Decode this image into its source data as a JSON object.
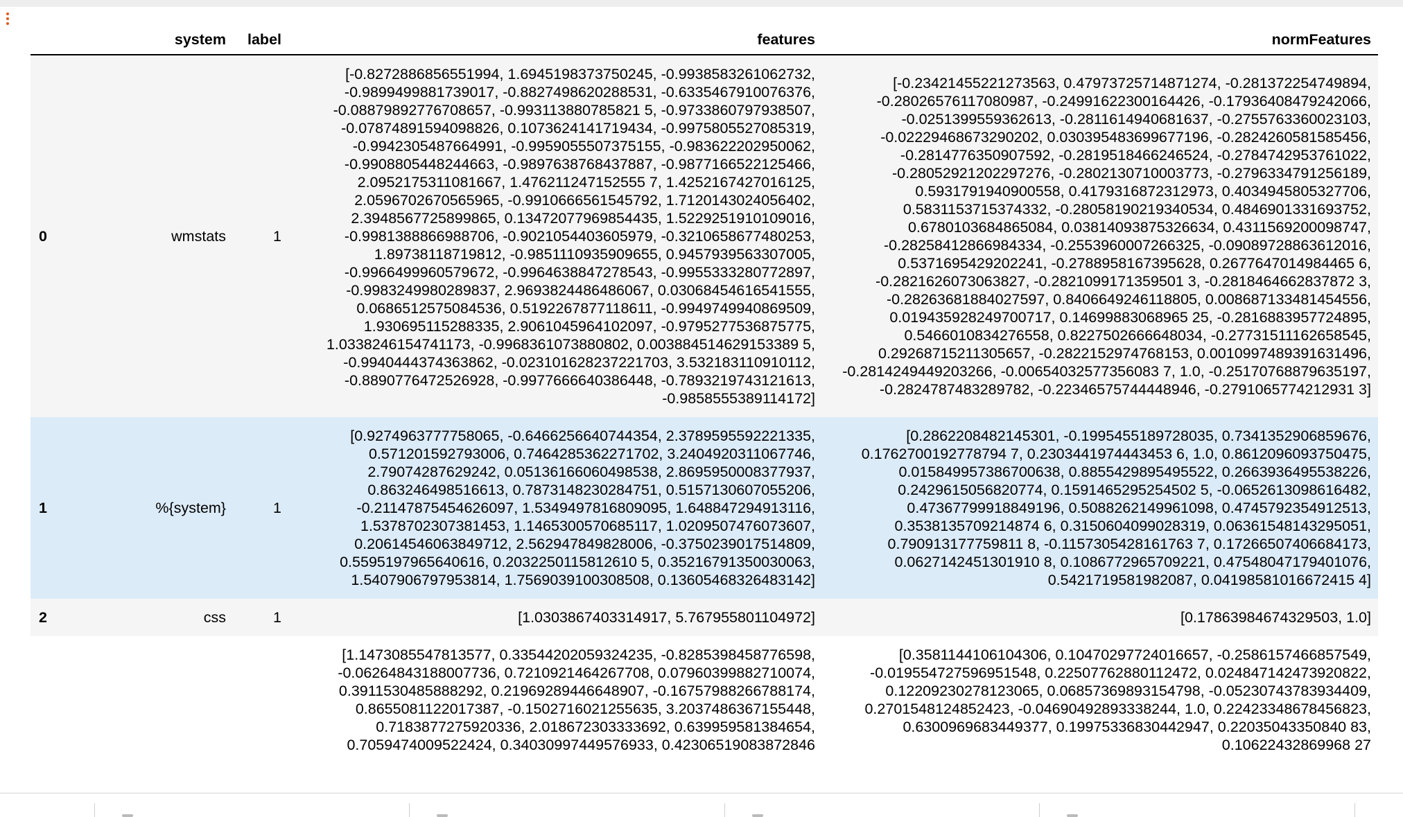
{
  "table": {
    "columns": [
      "",
      "system",
      "label",
      "features",
      "normFeatures"
    ],
    "rows": [
      {
        "index": "0",
        "system": "wmstats",
        "label": "1",
        "features": "[-0.8272886856551994, 1.6945198373750245, -0.9938583261062732, -0.9899499881739017, -0.8827498620288531, -0.6335467910076376, -0.08879892776708657, -0.993113880785821 5, -0.9733860797938507, -0.07874891594098826, 0.1073624141719434, -0.9975805527085319, -0.9942305487664991, -0.9959055507375155, -0.983622202950062, -0.9908805448244663, -0.9897638768437887, -0.9877166522125466, 2.0952175311081667, 1.476211247152555 7, 1.4252167427016125, 2.0596702670565965, -0.9910666561545792, 1.7120143024056402, 2.3948567725899865, 0.13472077969854435, 1.5229251910109016, -0.9981388866988706, -0.9021054403605979, -0.3210658677480253, 1.89738118719812, -0.9851110935909655, 0.9457939563307005, -0.9966499960579672, -0.9964638847278543, -0.9955333280772897, -0.9983249980289837, 2.9693824486486067, 0.03068454616541555, 0.0686512575084536, 0.5192267877118611, -0.9949749940869509, 1.930695115288335, 2.9061045964102097, -0.9795277536875775, 1.0338246154741173, -0.9968361073880802, 0.003884514629153389 5, -0.9940444374363862, -0.023101628237221703, 3.532183110910112, -0.8890776472526928, -0.9977666640386448, -0.7893219743121613, -0.9858555389114172]",
        "normFeatures": "[-0.23421455221273563, 0.47973725714871274, -0.281372254749894, -0.28026576117080987, -0.24991622300164426, -0.17936408479242066, -0.0251399559362613, -0.2811614940681637, -0.2755763360023103, -0.02229468673290202, 0.030395483699677196, -0.2824260581585456, -0.2814776350907592, -0.2819518466246524, -0.2784742953761022, -0.28052921202297276, -0.2802130710003773, -0.2796334791256189, 0.5931791940900558, 0.4179316872312973, 0.4034945805327706, 0.5831153715374332, -0.28058190219340534, 0.4846901331693752, 0.6780103684865084, 0.03814093875326634, 0.4311569200098747, -0.28258412866984334, -0.2553960007266325, -0.09089728863612016, 0.5371695429202241, -0.2788958167395628, 0.2677647014984465 6, -0.2821626073063827, -0.2821099171359501 3, -0.2818464662837872 3, -0.28263681884027597, 0.8406649246118805, 0.008687133481454556, 0.019435928249700717, 0.14699883068965 25, -0.2816883957724895, 0.5466010834276558, 0.8227502666648034, -0.27731511162658545, 0.29268715211305657, -0.2822152974768153, 0.0010997489391631496, -0.2814249449203266, -0.00654032577356083 7, 1.0, -0.25170768879635197, -0.2824787483289782, -0.22346575744448946, -0.2791065774212931 3]"
      },
      {
        "index": "1",
        "system": "%{system}",
        "label": "1",
        "features": "[0.9274963777758065, -0.6466256640744354, 2.3789595592221335, 0.571201592793006, 0.7464285362271702, 3.2404920311067746, 2.79074287629242, 0.05136166060498538, 2.8695950008377937, 0.863246498516613, 0.7873148230284751, 0.5157130607055206, -0.21147875454626097, 1.5349497816809095, 1.648847294913116, 1.5378702307381453, 1.1465300570685117, 1.0209507476073607, 0.20614546063849712, 2.562947849828006, -0.3750239017514809, 0.5595197965640616, 0.2032250115812610 5, 0.35216791350030063, 1.5407906797953814, 1.7569039100308508, 0.13605468326483142]",
        "normFeatures": "[0.2862208482145301, -0.1995455189728035, 0.7341352906859676, 0.1762700192778794 7, 0.2303441974443453 6, 1.0, 0.8612096093750475, 0.015849957386700638, 0.8855429895495522, 0.2663936495538226, 0.2429615056820774, 0.1591465295254502 5, -0.0652613098616482, 0.47367799918849196, 0.5088262149961098, 0.4745792354912513, 0.3538135709214874 6, 0.3150604099028319, 0.06361548143295051, 0.790913177759811 8, -0.1157305428161763 7, 0.17266507406684173, 0.0627142451301910 8, 0.1086772965709221, 0.47548047179401076, 0.5421719581982087, 0.04198581016672415 4]"
      },
      {
        "index": "2",
        "system": "css",
        "label": "1",
        "features": "[1.0303867403314917, 5.767955801104972]",
        "normFeatures": "[0.17863984674329503, 1.0]"
      },
      {
        "index": "",
        "system": "",
        "label": "",
        "features": "[1.1473085547813577, 0.33544202059324235, -0.8285398458776598, -0.06264843188007736, 0.7210921464267708, 0.07960399882710074, 0.3911530485888292, 0.21969289446648907, -0.16757988266788174, 0.8655081122017387, -0.1502716021255635, 3.2037486367155448, 0.7183877275920336, 2.018672303333692, 0.639959581384654, 0.7059474009522424, 0.34030997449576933, 0.42306519083872846",
        "normFeatures": "[0.3581144106104306, 0.10470297724016657, -0.2586157466857549, -0.019554727596951548, 0.22507762880112472, 0.024847142473920822, 0.12209230278123065, 0.06857369893154798, -0.05230743783934409, 0.2701548124852423, -0.04690492893338244, 1.0, 0.22423348678456823, 0.6300969683449377, 0.19975336830442947, 0.22035043350840 83, 0.10622432869968 27"
      }
    ]
  }
}
